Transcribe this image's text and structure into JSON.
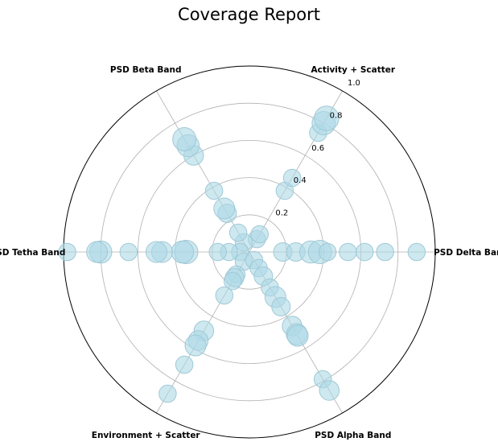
{
  "chart_data": {
    "type": "scatter",
    "subtype": "polar",
    "title": "Coverage Report",
    "radial_ticks": [
      "0.2",
      "0.4",
      "0.6",
      "0.8",
      "1.0"
    ],
    "radial_range": [
      0,
      1.0
    ],
    "grid": true,
    "marker_color": "#add8e6",
    "categories": [
      {
        "label": "PSD Delta Band",
        "angle_deg": 0,
        "points": [
          {
            "r": 0.18,
            "s": 0.6
          },
          {
            "r": 0.25,
            "s": 0.6
          },
          {
            "r": 0.33,
            "s": 0.9
          },
          {
            "r": 0.38,
            "s": 1.0
          },
          {
            "r": 0.42,
            "s": 0.5
          },
          {
            "r": 0.53,
            "s": 0.5
          },
          {
            "r": 0.62,
            "s": 0.5
          },
          {
            "r": 0.73,
            "s": 0.5
          },
          {
            "r": 0.9,
            "s": 0.5
          }
        ]
      },
      {
        "label": "Activity + Scatter",
        "angle_deg": 60,
        "points": [
          {
            "r": 0.08,
            "s": 0.5
          },
          {
            "r": 0.11,
            "s": 0.5
          },
          {
            "r": 0.38,
            "s": 0.5
          },
          {
            "r": 0.46,
            "s": 0.5
          },
          {
            "r": 0.74,
            "s": 0.5
          },
          {
            "r": 0.8,
            "s": 1.0
          },
          {
            "r": 0.83,
            "s": 1.1
          }
        ]
      },
      {
        "label": "PSD Beta Band",
        "angle_deg": 120,
        "points": [
          {
            "r": 0.06,
            "s": 0.5
          },
          {
            "r": 0.12,
            "s": 0.5
          },
          {
            "r": 0.24,
            "s": 0.6
          },
          {
            "r": 0.27,
            "s": 0.8
          },
          {
            "r": 0.38,
            "s": 0.5
          },
          {
            "r": 0.6,
            "s": 0.7
          },
          {
            "r": 0.66,
            "s": 0.9
          },
          {
            "r": 0.7,
            "s": 1.0
          }
        ]
      },
      {
        "label": "PSD Tetha Band",
        "angle_deg": 180,
        "points": [
          {
            "r": 0.05,
            "s": 0.5
          },
          {
            "r": 0.11,
            "s": 0.5
          },
          {
            "r": 0.17,
            "s": 0.5
          },
          {
            "r": 0.34,
            "s": 1.0
          },
          {
            "r": 0.36,
            "s": 0.9
          },
          {
            "r": 0.47,
            "s": 0.8
          },
          {
            "r": 0.5,
            "s": 0.8
          },
          {
            "r": 0.65,
            "s": 0.5
          },
          {
            "r": 0.8,
            "s": 0.9
          },
          {
            "r": 0.82,
            "s": 0.8
          },
          {
            "r": 0.98,
            "s": 0.5
          }
        ]
      },
      {
        "label": "Environment + Scatter",
        "angle_deg": 240,
        "points": [
          {
            "r": 0.06,
            "s": 0.5
          },
          {
            "r": 0.14,
            "s": 0.5
          },
          {
            "r": 0.16,
            "s": 0.6
          },
          {
            "r": 0.18,
            "s": 0.5
          },
          {
            "r": 0.27,
            "s": 0.5
          },
          {
            "r": 0.49,
            "s": 0.7
          },
          {
            "r": 0.55,
            "s": 0.7
          },
          {
            "r": 0.58,
            "s": 0.8
          },
          {
            "r": 0.7,
            "s": 0.5
          },
          {
            "r": 0.88,
            "s": 0.5
          }
        ]
      },
      {
        "label": "PSD Alpha Band",
        "angle_deg": 300,
        "points": [
          {
            "r": 0.05,
            "s": 0.5
          },
          {
            "r": 0.1,
            "s": 0.5
          },
          {
            "r": 0.15,
            "s": 0.6
          },
          {
            "r": 0.22,
            "s": 0.5
          },
          {
            "r": 0.28,
            "s": 0.8
          },
          {
            "r": 0.34,
            "s": 0.6
          },
          {
            "r": 0.46,
            "s": 0.7
          },
          {
            "r": 0.51,
            "s": 0.8
          },
          {
            "r": 0.52,
            "s": 0.8
          },
          {
            "r": 0.79,
            "s": 0.5
          },
          {
            "r": 0.86,
            "s": 0.7
          }
        ]
      }
    ]
  }
}
